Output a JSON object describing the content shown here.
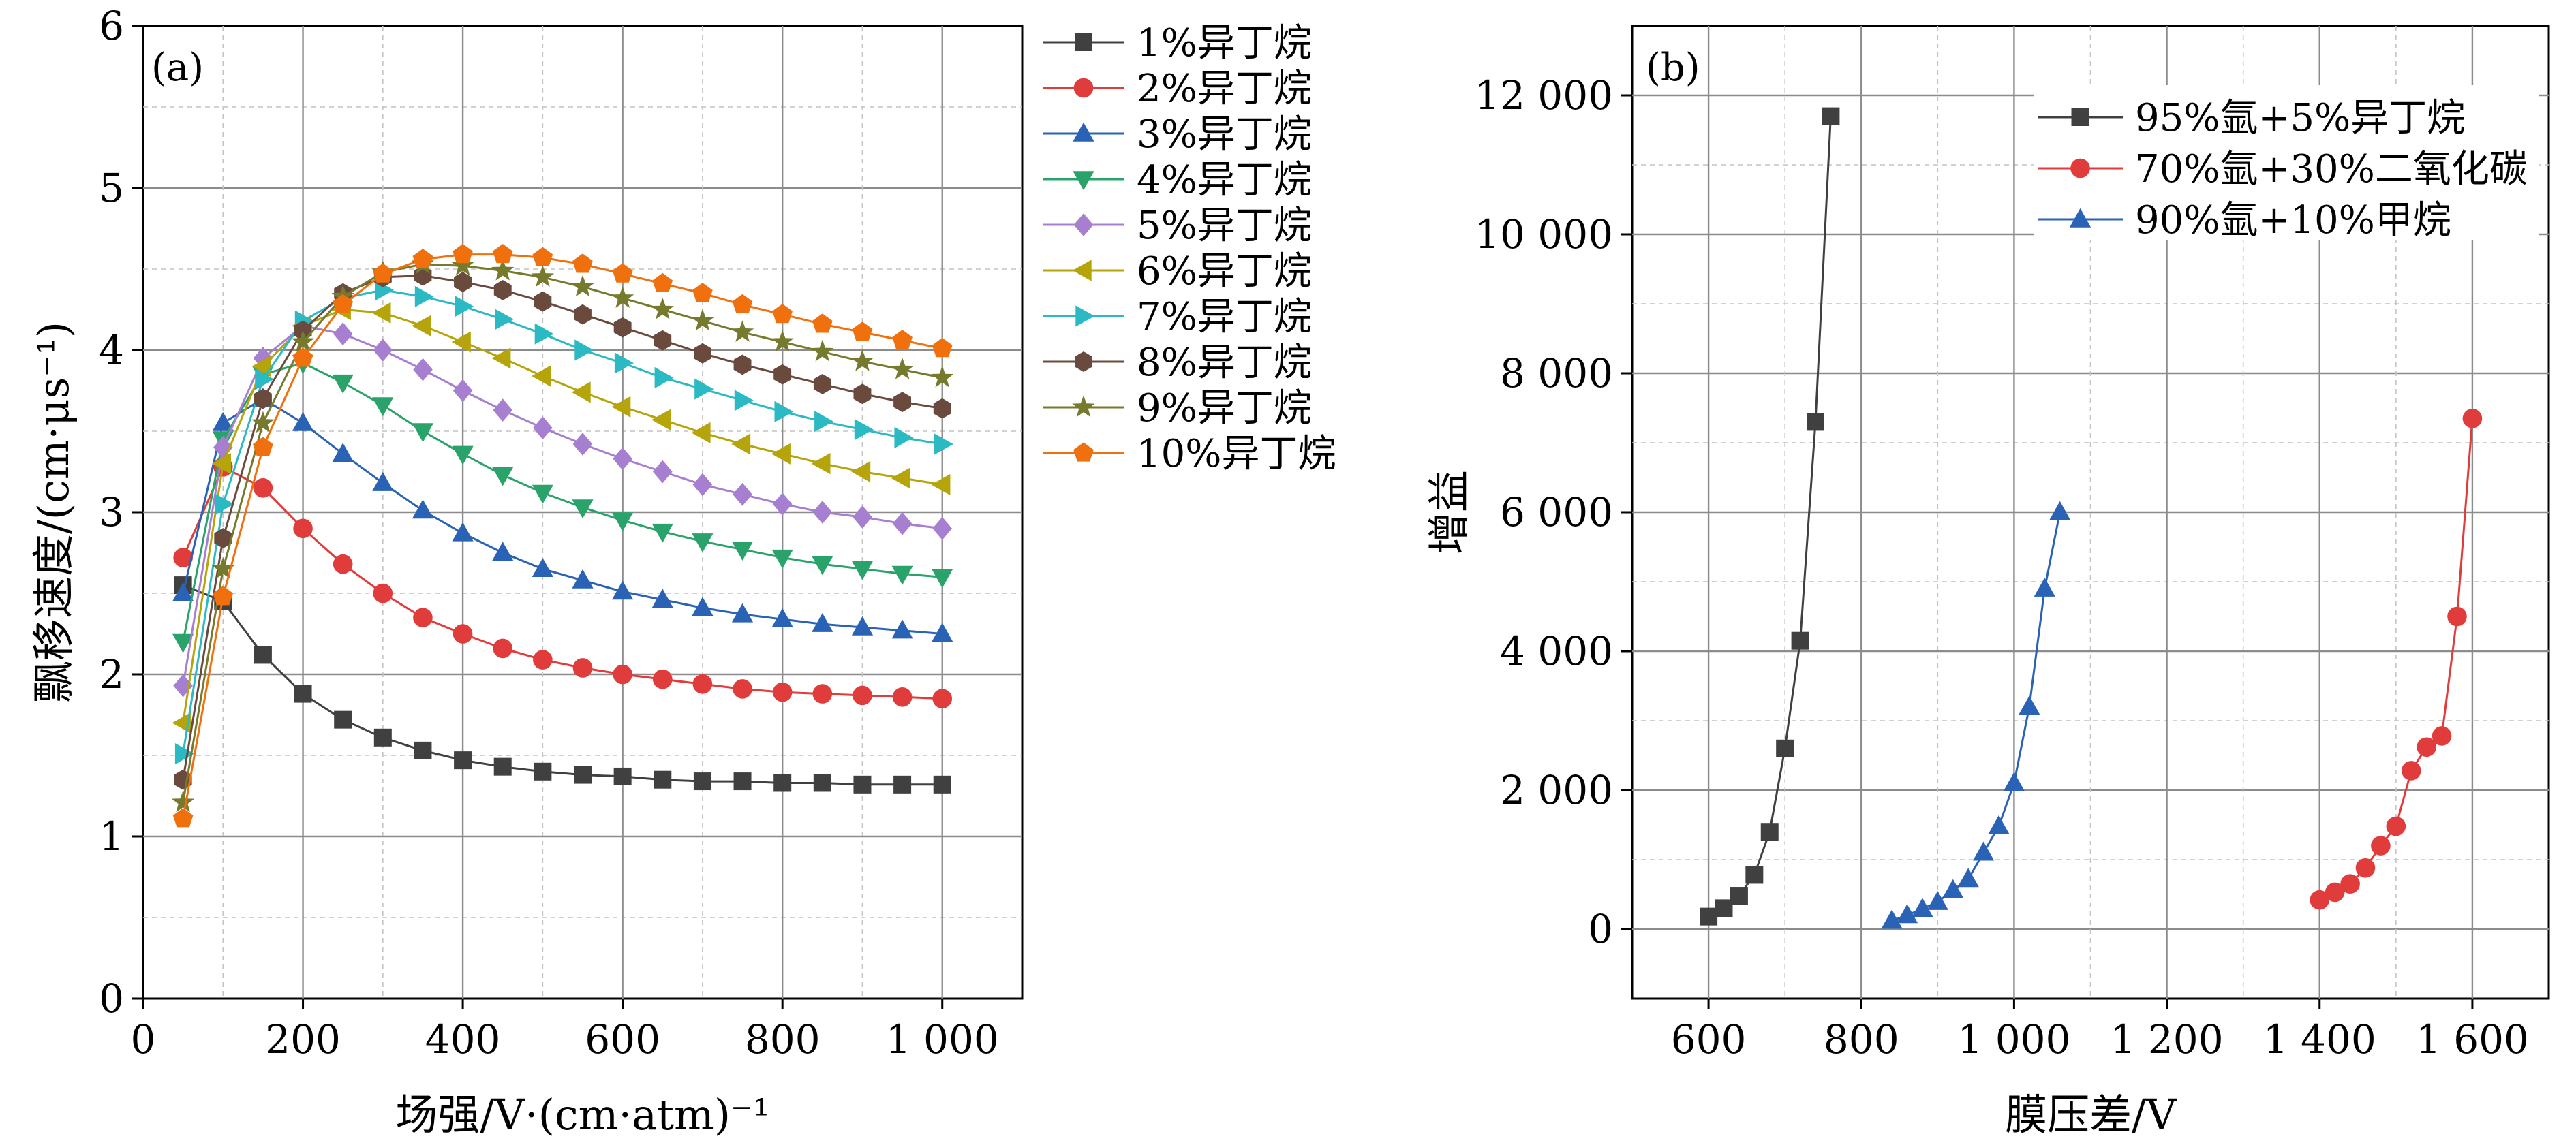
{
  "chart_data": [
    {
      "type": "line",
      "panel_label": "(a)",
      "xlabel": "场强/V·(cm·atm)⁻¹",
      "ylabel": "飘移速度/(cm·μs⁻¹)",
      "xlim": [
        0,
        1100
      ],
      "ylim": [
        0,
        6
      ],
      "xticks": [
        0,
        200,
        400,
        600,
        800,
        1000
      ],
      "xtick_labels": [
        "0",
        "200",
        "400",
        "600",
        "800",
        "1 000"
      ],
      "yticks": [
        0,
        1,
        2,
        3,
        4,
        5,
        6
      ],
      "ytick_labels": [
        "0",
        "1",
        "2",
        "3",
        "4",
        "5",
        "6"
      ],
      "grid": true,
      "legend_position": "right-outside",
      "x": [
        50,
        100,
        150,
        200,
        250,
        300,
        350,
        400,
        450,
        500,
        550,
        600,
        650,
        700,
        750,
        800,
        850,
        900,
        950,
        1000
      ],
      "series": [
        {
          "name": "1%异丁烷",
          "color": "#404040",
          "marker": "square",
          "values": [
            2.55,
            2.45,
            2.12,
            1.88,
            1.72,
            1.61,
            1.53,
            1.47,
            1.43,
            1.4,
            1.38,
            1.37,
            1.35,
            1.34,
            1.34,
            1.33,
            1.33,
            1.32,
            1.32,
            1.32
          ]
        },
        {
          "name": "2%异丁烷",
          "color": "#e03c3c",
          "marker": "circle",
          "values": [
            2.72,
            3.28,
            3.15,
            2.9,
            2.68,
            2.5,
            2.35,
            2.25,
            2.16,
            2.09,
            2.04,
            2.0,
            1.97,
            1.94,
            1.91,
            1.89,
            1.88,
            1.87,
            1.86,
            1.85
          ]
        },
        {
          "name": "3%异丁烷",
          "color": "#2a63b6",
          "marker": "triangle-up",
          "values": [
            2.5,
            3.55,
            3.7,
            3.55,
            3.36,
            3.18,
            3.01,
            2.87,
            2.75,
            2.65,
            2.58,
            2.51,
            2.46,
            2.41,
            2.37,
            2.34,
            2.31,
            2.29,
            2.27,
            2.25
          ]
        },
        {
          "name": "4%异丁烷",
          "color": "#2aa36b",
          "marker": "triangle-down",
          "values": [
            2.2,
            3.45,
            3.85,
            3.92,
            3.8,
            3.66,
            3.5,
            3.36,
            3.23,
            3.12,
            3.03,
            2.95,
            2.88,
            2.82,
            2.77,
            2.72,
            2.68,
            2.65,
            2.62,
            2.6
          ]
        },
        {
          "name": "5%异丁烷",
          "color": "#a77fd1",
          "marker": "diamond",
          "values": [
            1.93,
            3.4,
            3.95,
            4.15,
            4.1,
            4.0,
            3.88,
            3.75,
            3.63,
            3.52,
            3.42,
            3.33,
            3.25,
            3.17,
            3.11,
            3.05,
            3.0,
            2.97,
            2.93,
            2.9
          ]
        },
        {
          "name": "6%异丁烷",
          "color": "#b5a40a",
          "marker": "triangle-left",
          "values": [
            1.7,
            3.3,
            3.9,
            4.15,
            4.25,
            4.23,
            4.15,
            4.05,
            3.95,
            3.84,
            3.74,
            3.65,
            3.57,
            3.49,
            3.42,
            3.36,
            3.3,
            3.25,
            3.21,
            3.17
          ]
        },
        {
          "name": "7%异丁烷",
          "color": "#2bbac4",
          "marker": "triangle-right",
          "values": [
            1.51,
            3.05,
            3.82,
            4.18,
            4.32,
            4.37,
            4.33,
            4.27,
            4.19,
            4.1,
            4.0,
            3.92,
            3.83,
            3.76,
            3.69,
            3.62,
            3.56,
            3.51,
            3.46,
            3.42
          ]
        },
        {
          "name": "8%异丁烷",
          "color": "#6b4a3e",
          "marker": "hexagon",
          "values": [
            1.35,
            2.84,
            3.7,
            4.12,
            4.35,
            4.45,
            4.46,
            4.42,
            4.37,
            4.3,
            4.22,
            4.14,
            4.06,
            3.98,
            3.91,
            3.85,
            3.79,
            3.73,
            3.68,
            3.64
          ]
        },
        {
          "name": "9%异丁烷",
          "color": "#767a2d",
          "marker": "star",
          "values": [
            1.21,
            2.65,
            3.55,
            4.05,
            4.33,
            4.48,
            4.53,
            4.52,
            4.49,
            4.45,
            4.39,
            4.32,
            4.25,
            4.18,
            4.11,
            4.05,
            3.99,
            3.93,
            3.88,
            3.83
          ]
        },
        {
          "name": "10%异丁烷",
          "color": "#f0700e",
          "marker": "pentagon",
          "values": [
            1.11,
            2.48,
            3.4,
            3.95,
            4.28,
            4.47,
            4.56,
            4.59,
            4.59,
            4.57,
            4.53,
            4.47,
            4.41,
            4.35,
            4.28,
            4.22,
            4.16,
            4.11,
            4.06,
            4.01
          ]
        }
      ]
    },
    {
      "type": "line",
      "panel_label": "(b)",
      "xlabel": "膜压差/V",
      "ylabel": "增益",
      "xlim": [
        500,
        1700
      ],
      "ylim": [
        -1000,
        13000
      ],
      "xticks": [
        600,
        800,
        1000,
        1200,
        1400,
        1600
      ],
      "xtick_labels": [
        "600",
        "800",
        "1 000",
        "1 200",
        "1 400",
        "1 600"
      ],
      "yticks": [
        0,
        2000,
        4000,
        6000,
        8000,
        10000,
        12000
      ],
      "ytick_labels": [
        "0",
        "2 000",
        "4 000",
        "6 000",
        "8 000",
        "10 000",
        "12 000"
      ],
      "grid": true,
      "legend_position": "top-right",
      "series": [
        {
          "name": "95%氩+5%异丁烷",
          "color": "#404040",
          "marker": "square",
          "x": [
            600,
            620,
            640,
            660,
            680,
            700,
            720,
            740,
            760
          ],
          "values": [
            180,
            300,
            480,
            780,
            1400,
            2600,
            4150,
            7300,
            11700
          ]
        },
        {
          "name": "70%氩+30%二氧化碳",
          "color": "#e03c3c",
          "marker": "circle",
          "x": [
            1400,
            1420,
            1440,
            1460,
            1480,
            1500,
            1520,
            1540,
            1560,
            1580,
            1600
          ],
          "values": [
            420,
            530,
            650,
            880,
            1200,
            1480,
            2280,
            2620,
            2780,
            4500,
            7350
          ]
        },
        {
          "name": "90%氩+10%甲烷",
          "color": "#2a63b6",
          "marker": "triangle-up",
          "x": [
            840,
            860,
            880,
            900,
            920,
            940,
            960,
            980,
            1000,
            1020,
            1040,
            1060
          ],
          "values": [
            120,
            200,
            290,
            390,
            560,
            720,
            1100,
            1480,
            2100,
            3200,
            4900,
            6000
          ]
        }
      ]
    }
  ]
}
